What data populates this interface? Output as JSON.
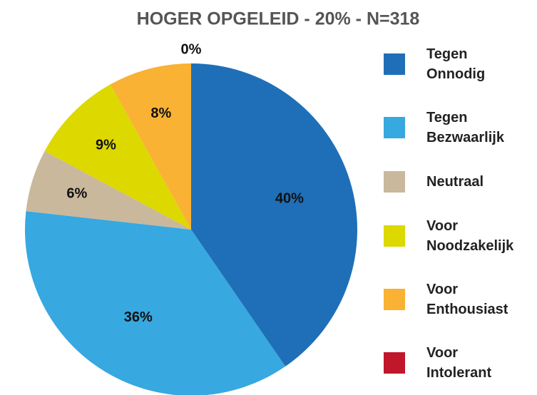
{
  "chart_data": {
    "type": "pie",
    "title": "HOGER OPGELEID - 20% - N=318",
    "categories": [
      "Tegen\nOnnodig",
      "Tegen\nBezwaarlijk",
      "Neutraal",
      "Voor\nNoodzakelijk",
      "Voor\nEnthousiast",
      "Voor\nIntolerant"
    ],
    "values": [
      40,
      36,
      6,
      9,
      8,
      0
    ],
    "value_labels": [
      "40%",
      "36%",
      "6%",
      "9%",
      "8%",
      "0%"
    ],
    "colors": [
      "#1f6fb8",
      "#37a8e0",
      "#c9b89c",
      "#dcd800",
      "#f9b233",
      "#c0172a"
    ],
    "legend": "right"
  }
}
